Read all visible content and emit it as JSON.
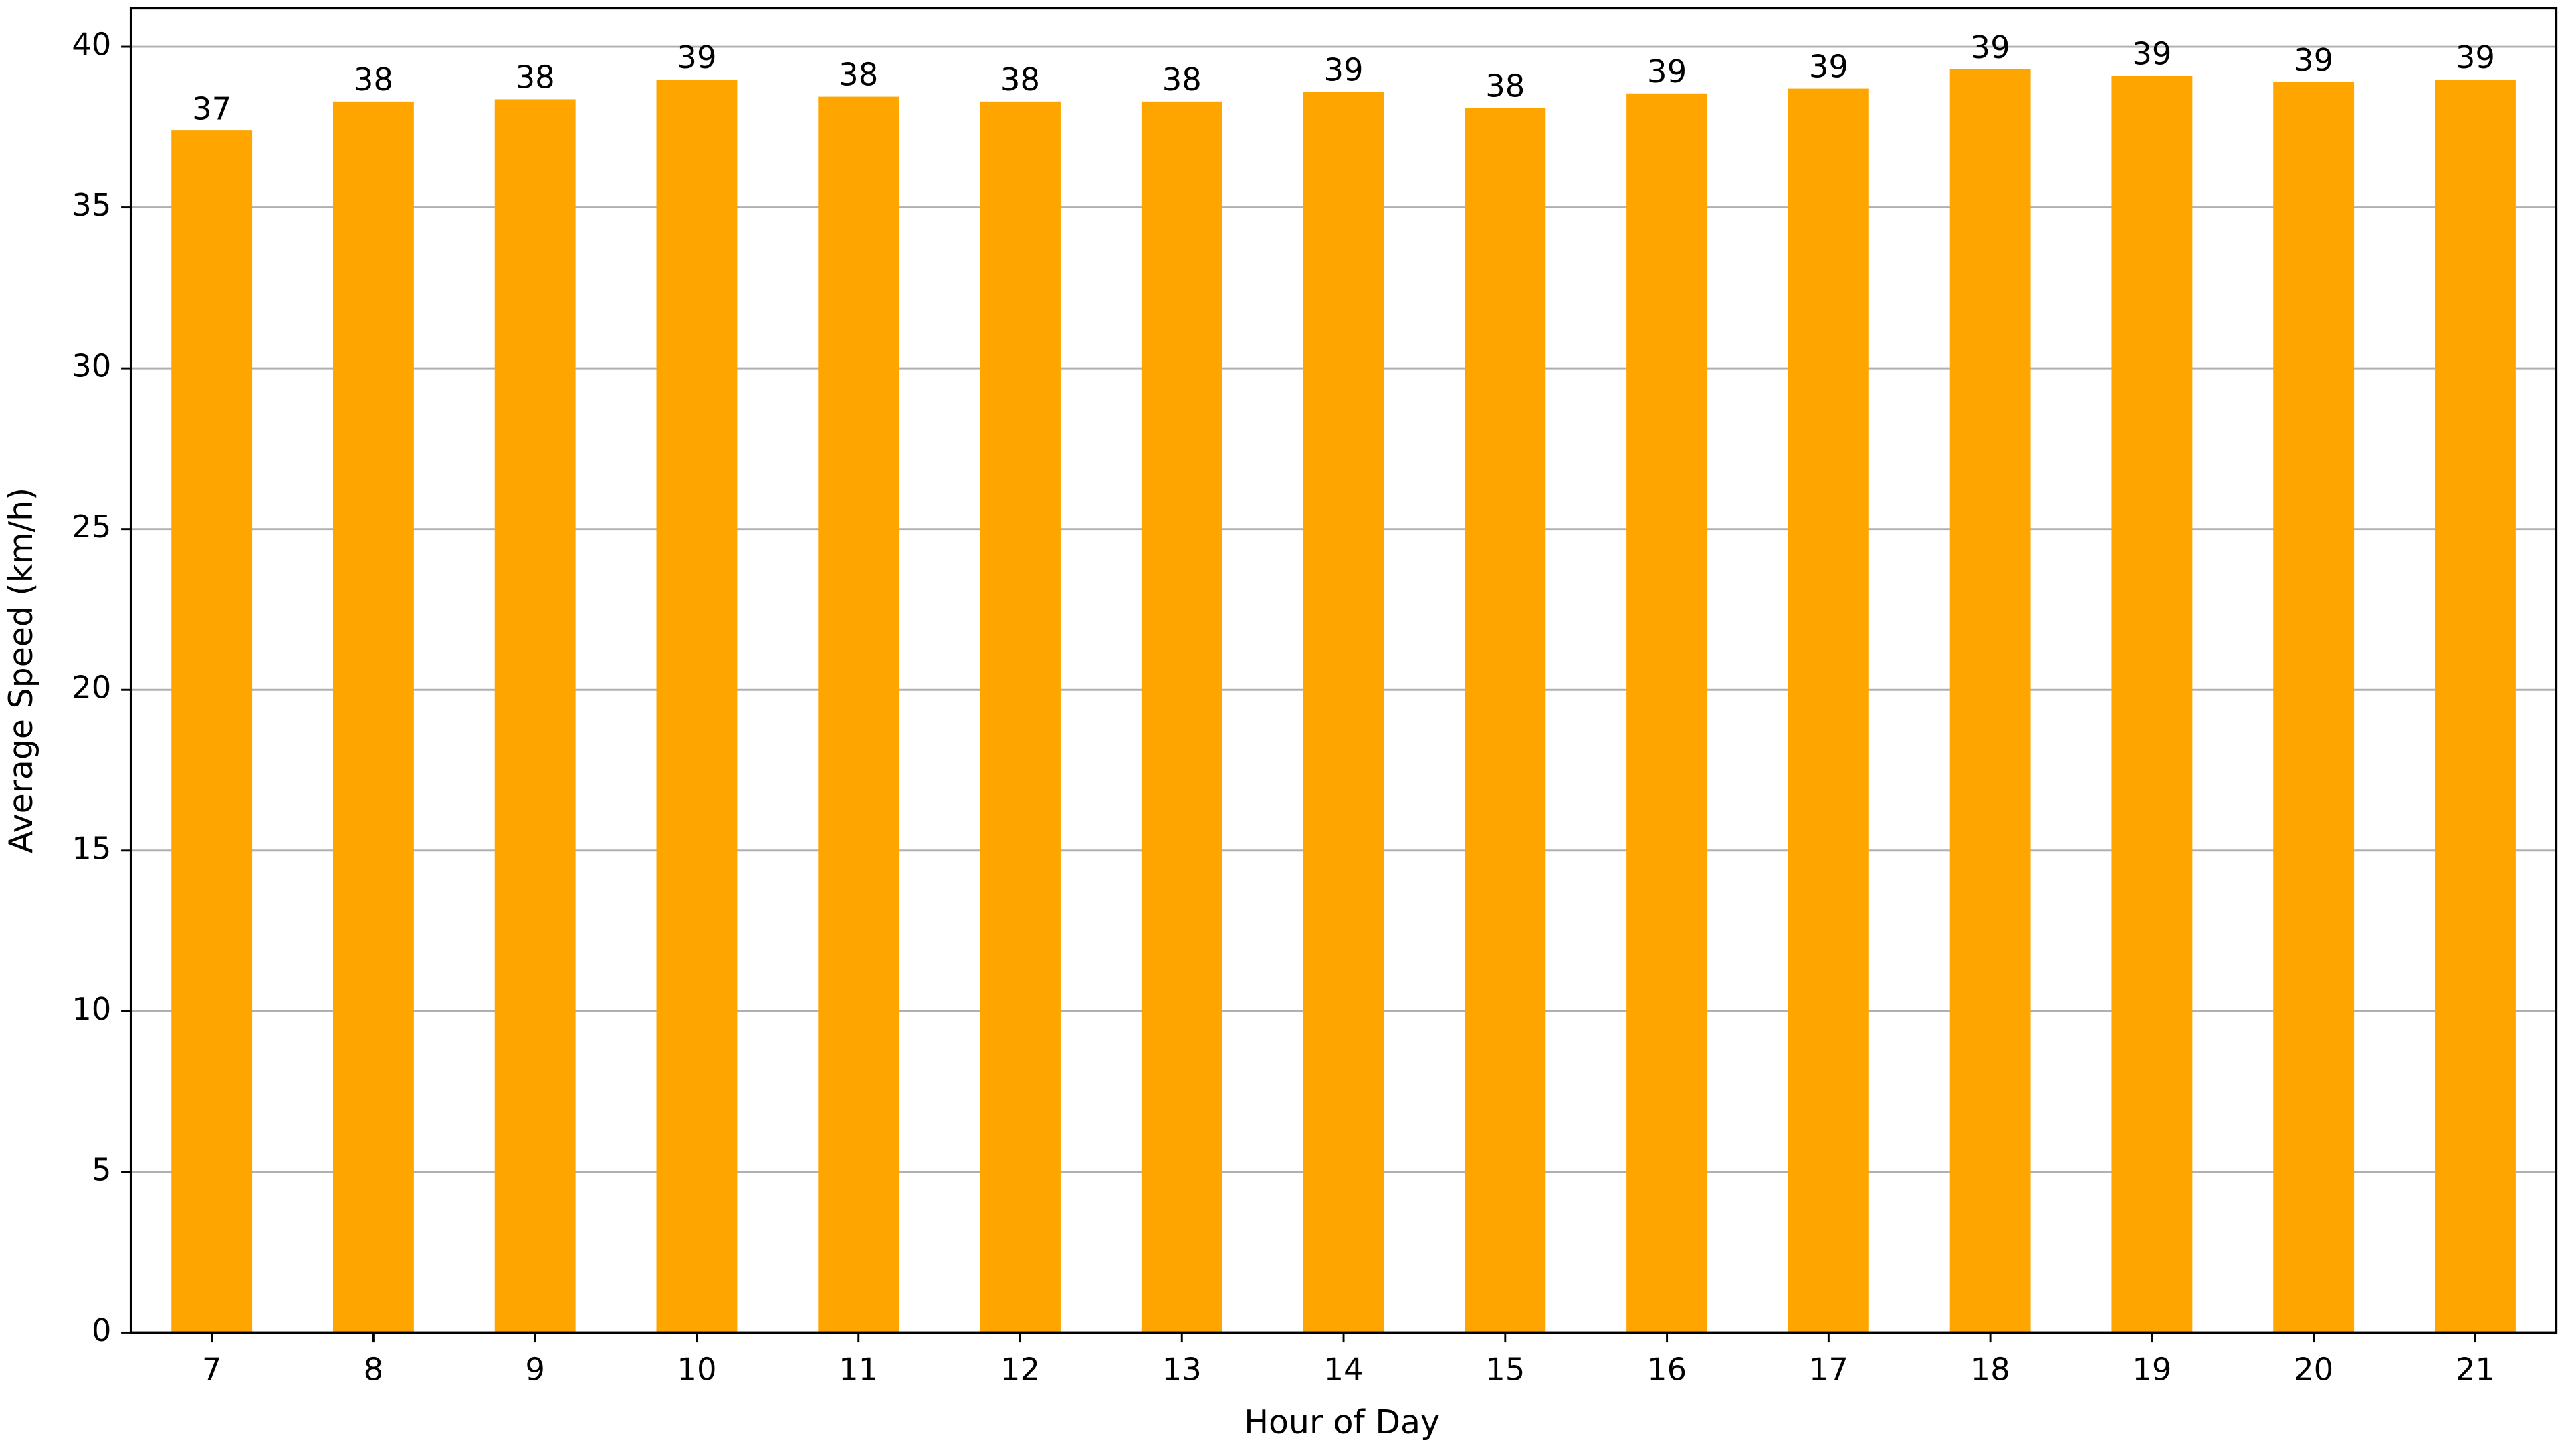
{
  "chart_data": {
    "type": "bar",
    "x_label": "Hour of Day",
    "y_label": "Average Speed (km/h)",
    "categories": [
      "7",
      "8",
      "9",
      "10",
      "11",
      "12",
      "13",
      "14",
      "15",
      "16",
      "17",
      "18",
      "19",
      "20",
      "21"
    ],
    "values": [
      37.4,
      38.3,
      38.37,
      38.98,
      38.45,
      38.3,
      38.3,
      38.6,
      38.1,
      38.55,
      38.7,
      39.3,
      39.1,
      38.9,
      38.98
    ],
    "value_labels": [
      "37",
      "38",
      "38",
      "39",
      "38",
      "38",
      "38",
      "39",
      "38",
      "39",
      "39",
      "39",
      "39",
      "39",
      "39"
    ],
    "color": "#ffa500",
    "ylim": [
      0,
      41.2
    ],
    "yticks": [
      0,
      5,
      10,
      15,
      20,
      25,
      30,
      35,
      40
    ],
    "grid": true
  }
}
